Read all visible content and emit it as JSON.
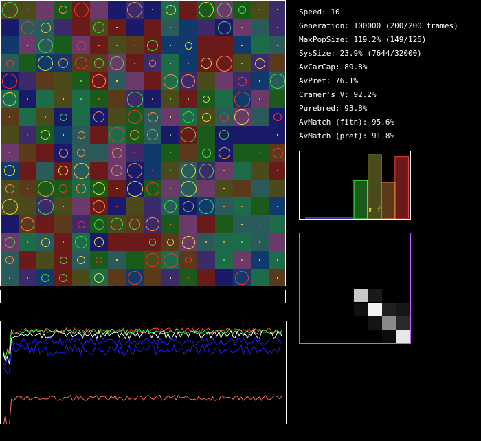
{
  "stats": {
    "speed": "Speed: 10",
    "generation": "Generation: 100000 (200/200 frames)",
    "maxpop": "MaxPopSize: 119.2% (149/125)",
    "syssize": "SysSize: 23.9% (7644/32000)",
    "avcarcap": "AvCarCap: 89.8%",
    "avpref": "AvPref: 76.1%",
    "cramers": "Cramer's V: 92.2%",
    "purebred": "Purebred: 93.8%",
    "avmatch_fitn": "AvMatch (fitn): 95.6%",
    "avmatch_pref": "AvMatch (pref): 91.8%"
  },
  "histogram": {
    "labels": "m f",
    "bar_levels": [
      0.02,
      0.6,
      1.0,
      0.57,
      0.97
    ]
  },
  "colors": {
    "background": "#000000",
    "border": "#ffffff",
    "cell_palette": [
      "#2a5a5a",
      "#1e6b4a",
      "#3d2a6b",
      "#0f3a6b",
      "#1a1a6b",
      "#6b1a1a",
      "#4a4a1a",
      "#1a5a1a",
      "#6b3a6b",
      "#5a3a1a"
    ],
    "organism_red": "#ff3030",
    "organism_yellow": "#e0e040",
    "organism_green": "#40e040",
    "organism_orange": "#ff9040",
    "series_white": "#ffffff",
    "series_blue": "#2020ff",
    "series_green": "#30ff30",
    "series_red": "#ff4040",
    "series_salmon": "#ff7060"
  }
}
